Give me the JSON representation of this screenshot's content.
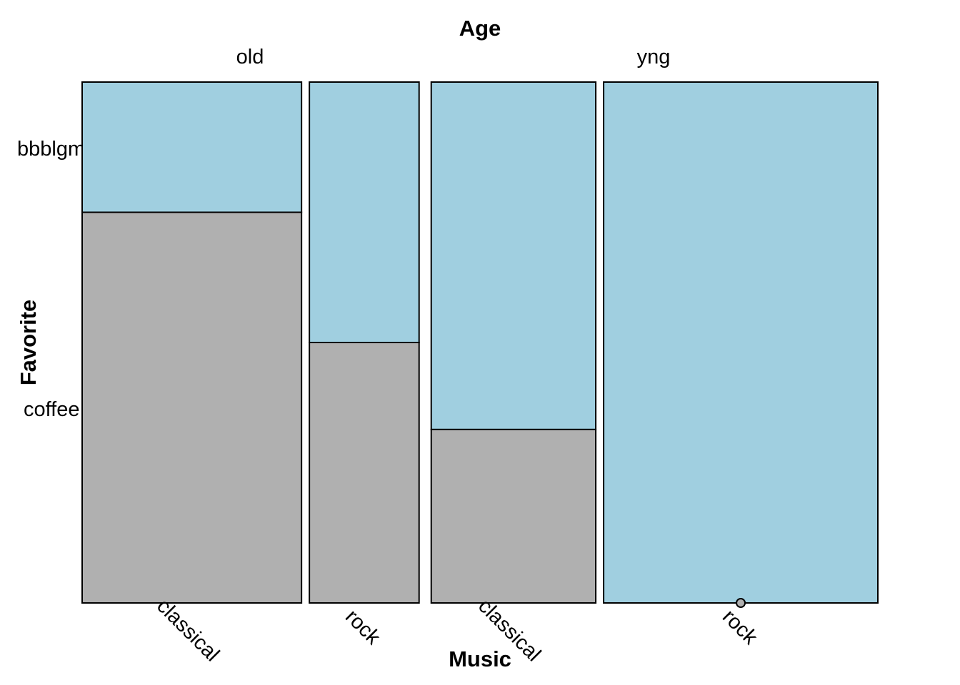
{
  "chart_data": {
    "type": "mosaic",
    "title_top": "Age",
    "xlabel": "Music",
    "ylabel": "Favorite",
    "age_levels": [
      "old",
      "yng"
    ],
    "music_levels": [
      "classical",
      "rock"
    ],
    "favorite_levels": [
      "bbblgm",
      "coffee"
    ],
    "cells": [
      {
        "age": "old",
        "music": "classical",
        "col_share": 0.28,
        "bbblgm": 0.25,
        "coffee": 0.75
      },
      {
        "age": "old",
        "music": "rock",
        "col_share": 0.14,
        "bbblgm": 0.5,
        "coffee": 0.5
      },
      {
        "age": "yng",
        "music": "classical",
        "col_share": 0.21,
        "bbblgm": 0.667,
        "coffee": 0.333
      },
      {
        "age": "yng",
        "music": "rock",
        "col_share": 0.35,
        "bbblgm": 1.0,
        "coffee": 0.0
      }
    ],
    "colors": {
      "bbblgm": "#a0cfe0",
      "coffee": "#b0b0b0",
      "border": "#000000"
    }
  }
}
